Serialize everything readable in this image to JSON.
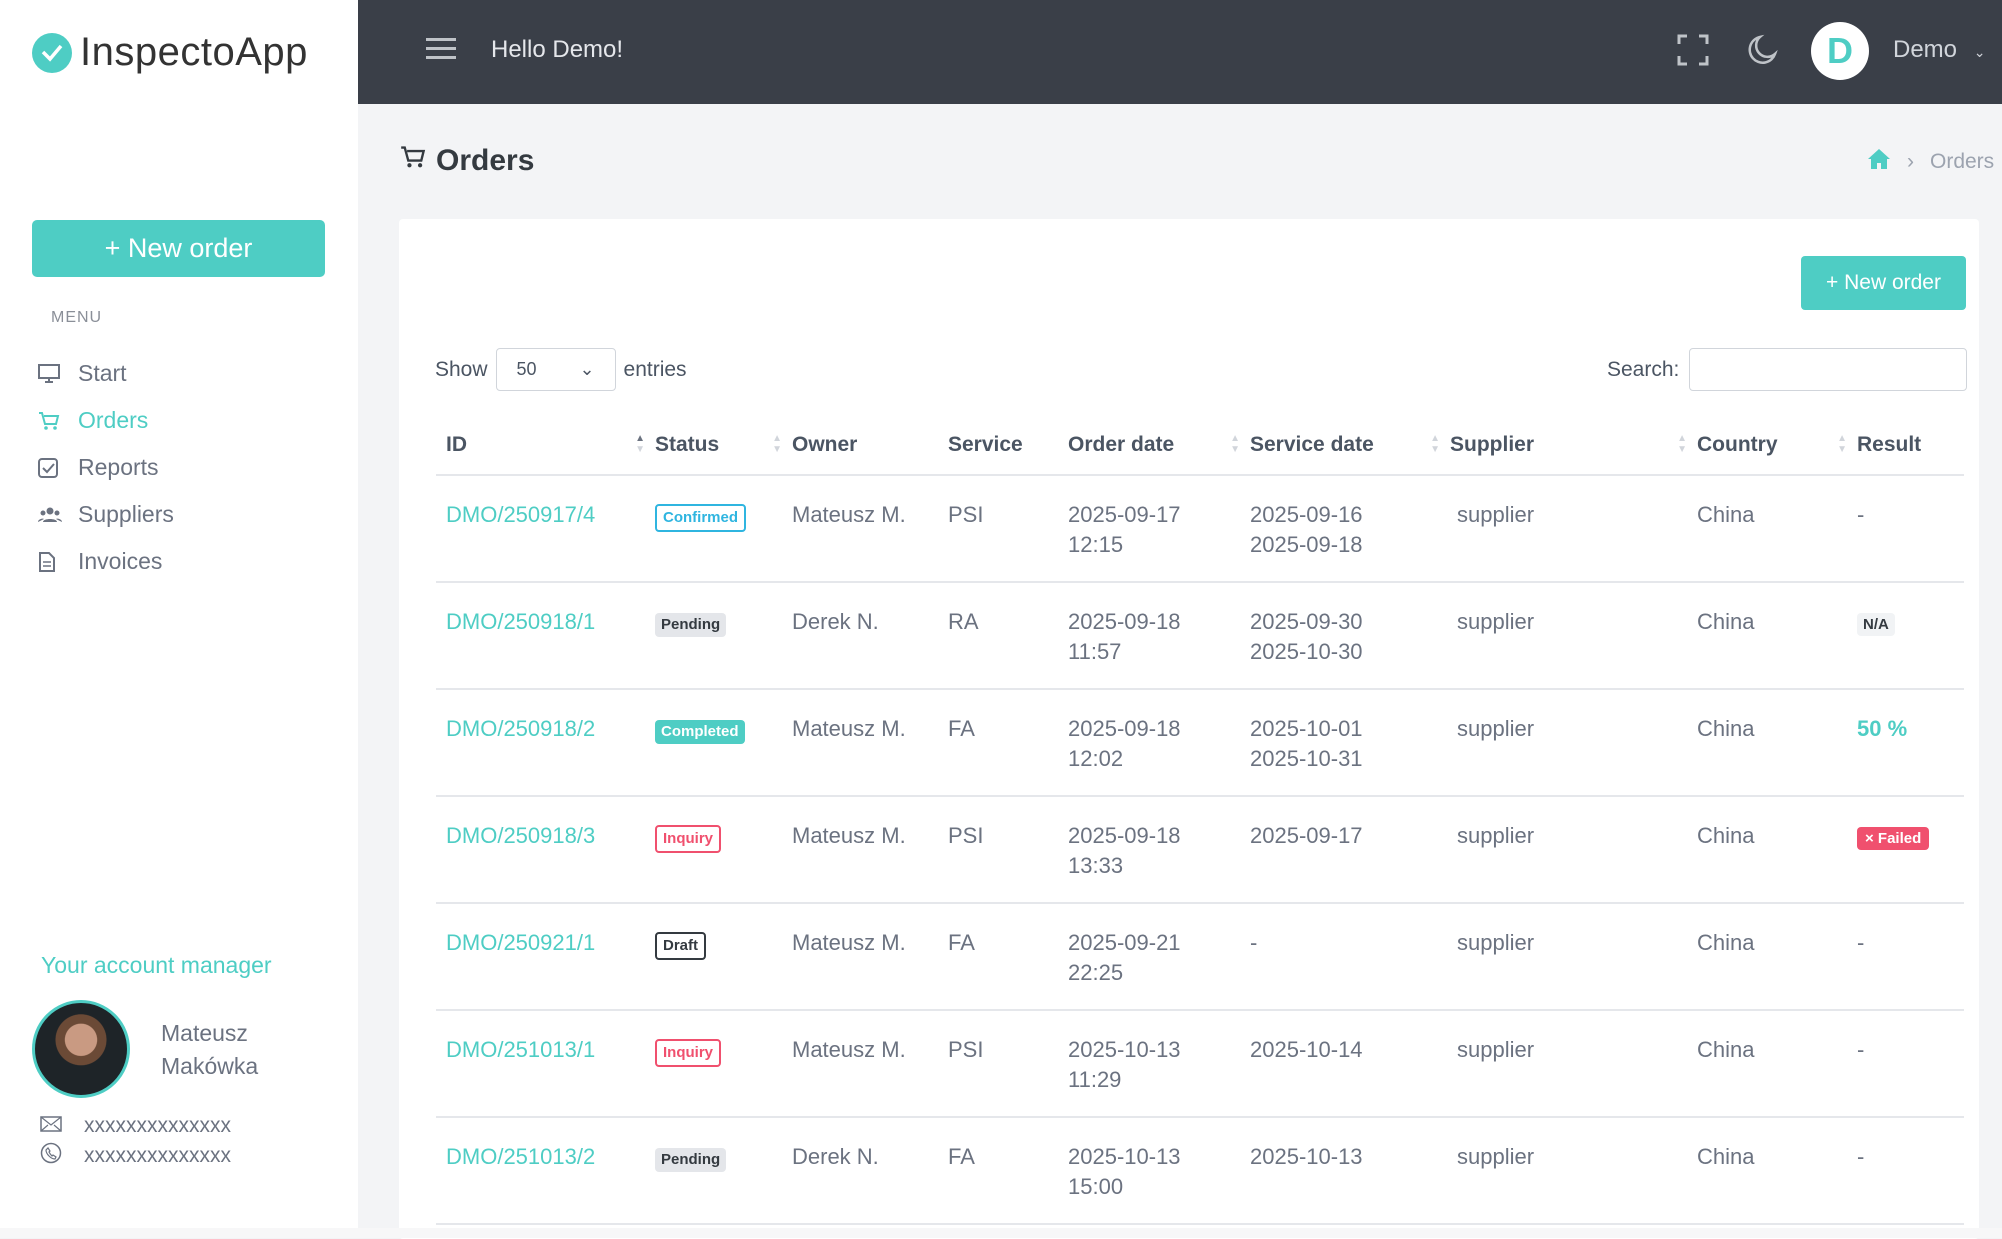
{
  "app": {
    "name": "InspectoApp"
  },
  "sidebar": {
    "new_order": "+ New order",
    "menu_label": "MENU",
    "items": [
      {
        "label": "Start",
        "icon": "monitor-icon"
      },
      {
        "label": "Orders",
        "icon": "cart-icon",
        "active": true
      },
      {
        "label": "Reports",
        "icon": "checkbox-icon"
      },
      {
        "label": "Suppliers",
        "icon": "users-icon"
      },
      {
        "label": "Invoices",
        "icon": "document-icon"
      }
    ],
    "manager": {
      "title": "Your account manager",
      "first_name": "Mateusz",
      "last_name": "Makówka",
      "email": "xxxxxxxxxxxxxx",
      "phone": "xxxxxxxxxxxxxx"
    }
  },
  "topbar": {
    "greeting": "Hello Demo!",
    "avatar_letter": "D",
    "user": "Demo"
  },
  "page": {
    "title": "Orders",
    "breadcrumb": [
      "Home",
      "Orders"
    ]
  },
  "card": {
    "new_order": "+ New order",
    "show_label": "Show",
    "entries_value": "50",
    "entries_label": "entries",
    "search_label": "Search:",
    "search_value": ""
  },
  "colors": {
    "accent": "#4ecdc4",
    "topbar": "#3a3f48",
    "danger": "#f0506e",
    "info": "#2fb5e0"
  },
  "table": {
    "columns": [
      "ID",
      "Status",
      "Owner",
      "Service",
      "Order date",
      "Service date",
      "Supplier",
      "Country",
      "Result"
    ],
    "rows": [
      {
        "id": "DMO/250917/4",
        "status": "Confirmed",
        "owner": "Mateusz M.",
        "service": "PSI",
        "order_date": "2025-09-17",
        "order_time": "12:15",
        "service_from": "2025-09-16",
        "service_to": "2025-09-18",
        "supplier": "supplier",
        "country": "China",
        "result": "-",
        "result_type": "plain"
      },
      {
        "id": "DMO/250918/1",
        "status": "Pending",
        "owner": "Derek N.",
        "service": "RA",
        "order_date": "2025-09-18",
        "order_time": "11:57",
        "service_from": "2025-09-30",
        "service_to": "2025-10-30",
        "supplier": "supplier",
        "country": "China",
        "result": "N/A",
        "result_type": "na"
      },
      {
        "id": "DMO/250918/2",
        "status": "Completed",
        "owner": "Mateusz M.",
        "service": "FA",
        "order_date": "2025-09-18",
        "order_time": "12:02",
        "service_from": "2025-10-01",
        "service_to": "2025-10-31",
        "supplier": "supplier",
        "country": "China",
        "result": "50 %",
        "result_type": "pct"
      },
      {
        "id": "DMO/250918/3",
        "status": "Inquiry",
        "owner": "Mateusz M.",
        "service": "PSI",
        "order_date": "2025-09-18",
        "order_time": "13:33",
        "service_from": "2025-09-17",
        "service_to": "",
        "supplier": "supplier",
        "country": "China",
        "result": "× Failed",
        "result_type": "failed"
      },
      {
        "id": "DMO/250921/1",
        "status": "Draft",
        "owner": "Mateusz M.",
        "service": "FA",
        "order_date": "2025-09-21",
        "order_time": "22:25",
        "service_from": "-",
        "service_to": "",
        "supplier": "supplier",
        "country": "China",
        "result": "-",
        "result_type": "plain"
      },
      {
        "id": "DMO/251013/1",
        "status": "Inquiry",
        "owner": "Mateusz M.",
        "service": "PSI",
        "order_date": "2025-10-13",
        "order_time": "11:29",
        "service_from": "2025-10-14",
        "service_to": "",
        "supplier": "supplier",
        "country": "China",
        "result": "-",
        "result_type": "plain"
      },
      {
        "id": "DMO/251013/2",
        "status": "Pending",
        "owner": "Derek N.",
        "service": "FA",
        "order_date": "2025-10-13",
        "order_time": "15:00",
        "service_from": "2025-10-13",
        "service_to": "",
        "supplier": "supplier",
        "country": "China",
        "result": "-",
        "result_type": "plain"
      }
    ]
  }
}
